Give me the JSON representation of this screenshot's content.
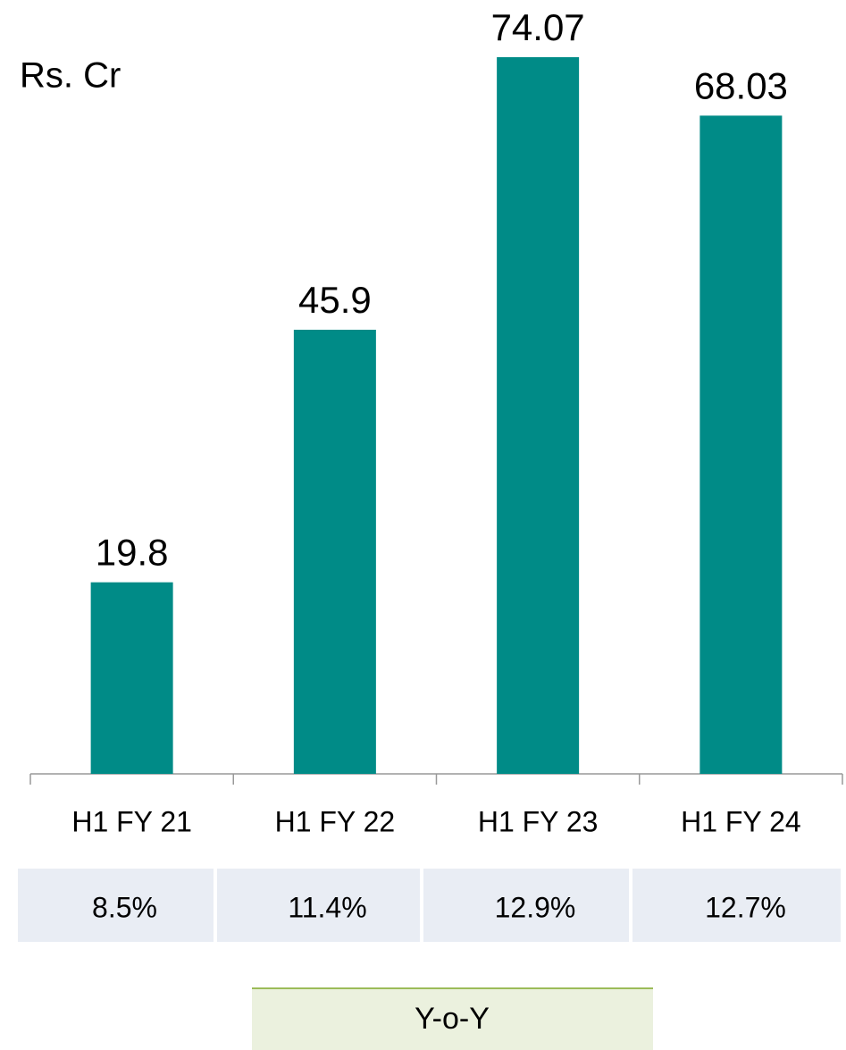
{
  "chart_data": {
    "type": "bar",
    "unit_label": "Rs. Cr",
    "categories": [
      "H1 FY 21",
      "H1 FY 22",
      "H1 FY 23",
      "H1 FY 24"
    ],
    "values": [
      19.8,
      45.9,
      74.07,
      68.03
    ],
    "color": "#008b87",
    "table": {
      "cells": [
        "8.5%",
        "11.4%",
        "12.9%",
        "12.7%"
      ],
      "label": "Y-o-Y"
    }
  }
}
